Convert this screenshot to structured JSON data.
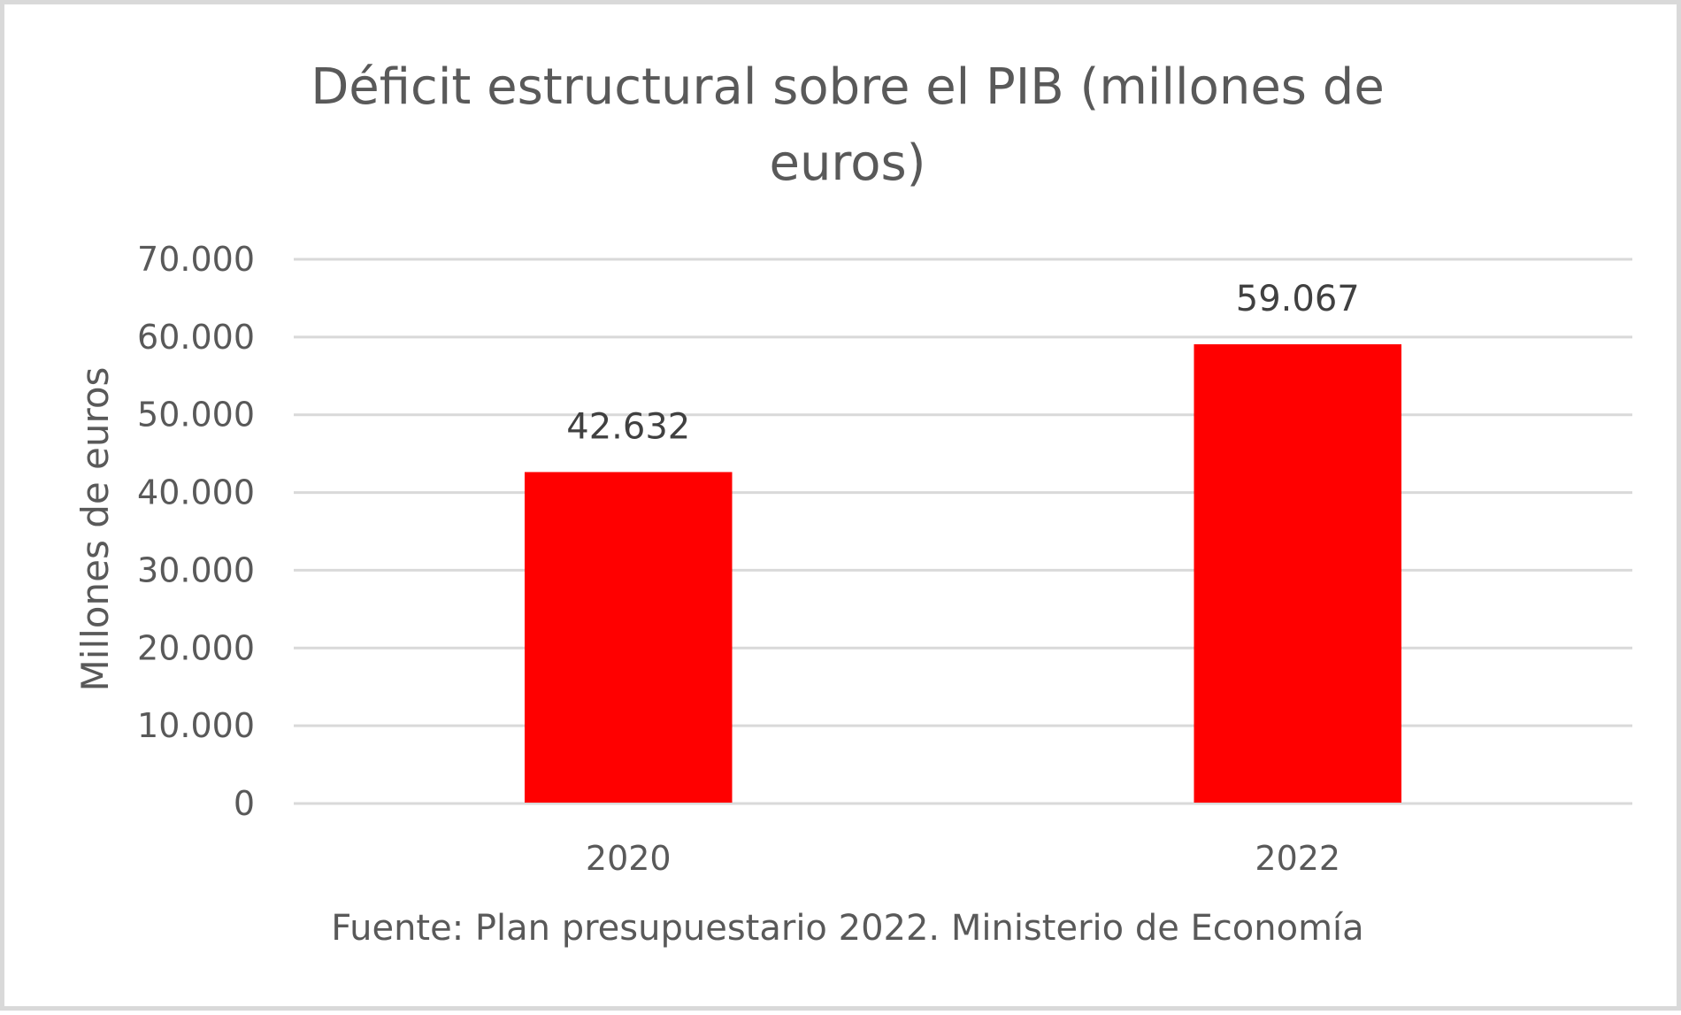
{
  "chart_data": {
    "type": "bar",
    "title_lines": [
      "Déficit estructural sobre el PIB (millones de",
      "euros)"
    ],
    "categories": [
      "2020",
      "2022"
    ],
    "values": [
      42632,
      59067
    ],
    "data_labels": [
      "42.632",
      "59.067"
    ],
    "ylabel": "Millones de euros",
    "xlabel": "",
    "ylim": [
      0,
      70000
    ],
    "yticks": [
      0,
      10000,
      20000,
      30000,
      40000,
      50000,
      60000,
      70000
    ],
    "ytick_labels": [
      "0",
      "10.000",
      "20.000",
      "30.000",
      "40.000",
      "50.000",
      "60.000",
      "70.000"
    ],
    "grid": true,
    "bar_color": "#ff0000",
    "source": "Fuente: Plan presupuestario 2022. Ministerio de Economía"
  }
}
